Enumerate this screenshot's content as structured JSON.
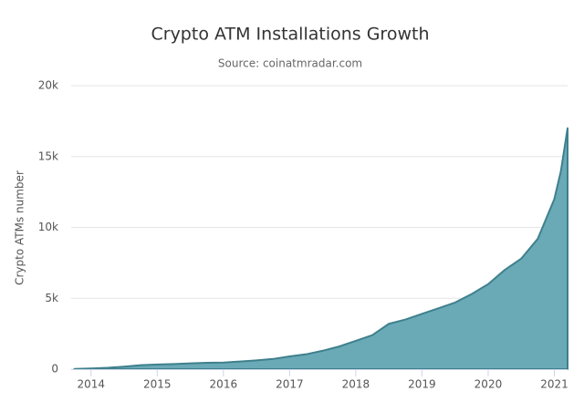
{
  "chart_data": {
    "type": "area",
    "title": "Crypto ATM Installations Growth",
    "subtitle": "Source: coinatmradar.com",
    "y_label": "Crypto ATMs number",
    "x": [
      2013.75,
      2014.0,
      2014.25,
      2014.5,
      2014.75,
      2015.0,
      2015.25,
      2015.5,
      2015.75,
      2016.0,
      2016.25,
      2016.5,
      2016.75,
      2017.0,
      2017.25,
      2017.5,
      2017.75,
      2018.0,
      2018.25,
      2018.5,
      2018.75,
      2019.0,
      2019.25,
      2019.5,
      2019.75,
      2020.0,
      2020.25,
      2020.5,
      2020.75,
      2021.0,
      2021.1,
      2021.2
    ],
    "values": [
      20,
      50,
      100,
      180,
      280,
      330,
      360,
      410,
      450,
      470,
      540,
      620,
      720,
      900,
      1050,
      1300,
      1600,
      2000,
      2400,
      3200,
      3500,
      3900,
      4300,
      4700,
      5300,
      6000,
      7000,
      7800,
      9200,
      12000,
      14000,
      17000
    ],
    "color": "#6aa9b6",
    "line_color": "#3f808d",
    "xlim": [
      2013.7,
      2021.2
    ],
    "xticks": [
      2014,
      2015,
      2016,
      2017,
      2018,
      2019,
      2020,
      2021
    ],
    "ylim": [
      0,
      20000
    ],
    "yticks": [
      0,
      {
        "value": 5000,
        "label": "5k"
      },
      {
        "value": 10000,
        "label": "10k"
      },
      {
        "value": 15000,
        "label": "15k"
      },
      {
        "value": 20000,
        "label": "20k"
      }
    ],
    "grid": true
  }
}
